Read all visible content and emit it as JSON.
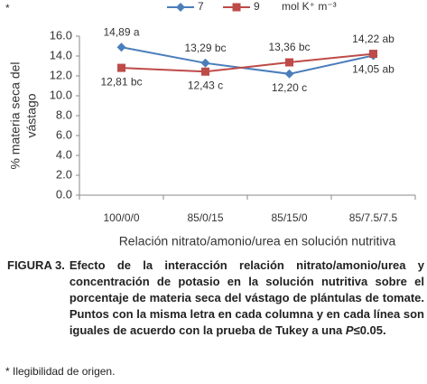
{
  "marker": "*",
  "chart_data": {
    "type": "line",
    "legend_unit": "mol K⁺ m⁻³",
    "y_label_lines": [
      "% materia seca del",
      "vástago"
    ],
    "x_label": "Relación nitrato/amonio/urea en solución nutritiva",
    "categories": [
      "100/0/0",
      "85/0/15",
      "85/15/0",
      "85/7.5/7.5"
    ],
    "series": [
      {
        "name": "7",
        "color": "#4a7ebb",
        "marker": "diamond",
        "values": [
          14.89,
          13.29,
          12.2,
          14.05
        ],
        "value_labels": [
          "14,89 a",
          "13,29 bc",
          "12,20 c",
          "14,05 ab"
        ]
      },
      {
        "name": "9",
        "color": "#be4b48",
        "marker": "square",
        "values": [
          12.81,
          12.43,
          13.36,
          14.22
        ],
        "value_labels": [
          "12,81 bc",
          "12,43 c",
          "13,36 bc",
          "14,22 ab"
        ]
      }
    ],
    "ylim": [
      0,
      16
    ],
    "yticks": [
      {
        "value": 0,
        "label": "0.0"
      },
      {
        "value": 2,
        "label": "2.0"
      },
      {
        "value": 4,
        "label": "4.0"
      },
      {
        "value": 6,
        "label": "6.0"
      },
      {
        "value": 8,
        "label": "8.0"
      },
      {
        "value": 10,
        "label": "10.0"
      },
      {
        "value": 12,
        "label": "12.0"
      },
      {
        "value": 14,
        "label": "14.0"
      },
      {
        "value": 16,
        "label": "16.0"
      }
    ],
    "grid": false
  },
  "caption": {
    "label": "FIGURA 3.",
    "text": "Efecto de la interacción  relación nitrato/amonio/urea y concentración de potasio en la solución nutritiva sobre el porcentaje de materia seca del vástago de plántulas de tomate. Puntos con la misma letra en cada columna y en cada línea son iguales de acuerdo con la prueba de Tukey a una ",
    "italic": "P",
    "tail": "≤0.05."
  },
  "footnote": "* Ilegibilidad de origen."
}
